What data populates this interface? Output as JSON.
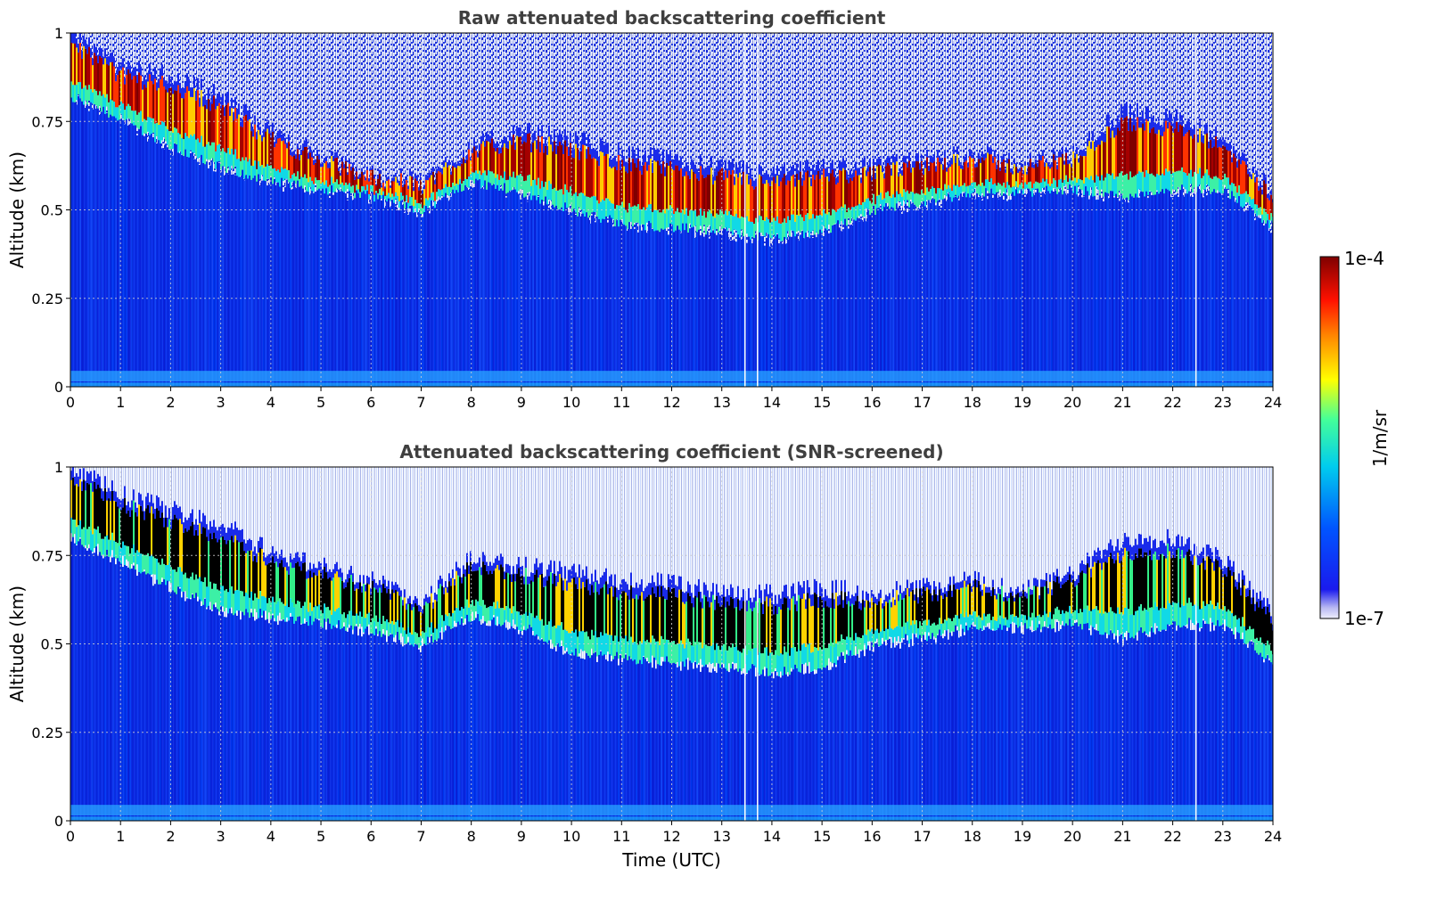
{
  "chart_data": [
    {
      "type": "heatmap",
      "title": "Raw attenuated backscattering coefficient",
      "xlabel": "",
      "ylabel": "Altitude (km)",
      "xlim": [
        0,
        24
      ],
      "ylim": [
        0,
        1
      ],
      "x_ticks": [
        "0",
        "1",
        "2",
        "3",
        "4",
        "5",
        "6",
        "7",
        "8",
        "9",
        "10",
        "11",
        "12",
        "13",
        "14",
        "15",
        "16",
        "17",
        "18",
        "19",
        "20",
        "21",
        "22",
        "23",
        "24"
      ],
      "y_ticks": [
        "0",
        "0.25",
        "0.5",
        "0.75",
        "1"
      ],
      "grid": true,
      "colorscale": "jet",
      "cloud_layer": {
        "time_utc": [
          0,
          1,
          2,
          3,
          4,
          5,
          6,
          7,
          8,
          9,
          10,
          11,
          12,
          13,
          14,
          15,
          16,
          17,
          18,
          19,
          20,
          21,
          22,
          23,
          24
        ],
        "base_km": [
          0.82,
          0.76,
          0.68,
          0.62,
          0.58,
          0.56,
          0.54,
          0.5,
          0.58,
          0.55,
          0.5,
          0.46,
          0.45,
          0.44,
          0.42,
          0.44,
          0.5,
          0.52,
          0.55,
          0.55,
          0.56,
          0.54,
          0.56,
          0.56,
          0.45
        ],
        "top_km": [
          1.0,
          0.9,
          0.88,
          0.82,
          0.72,
          0.65,
          0.6,
          0.58,
          0.68,
          0.72,
          0.7,
          0.66,
          0.64,
          0.62,
          0.6,
          0.62,
          0.62,
          0.64,
          0.66,
          0.63,
          0.66,
          0.78,
          0.76,
          0.7,
          0.55
        ]
      }
    },
    {
      "type": "heatmap",
      "title": "Attenuated backscattering coefficient (SNR-screened)",
      "xlabel": "Time (UTC)",
      "ylabel": "Altitude (km)",
      "xlim": [
        0,
        24
      ],
      "ylim": [
        0,
        1
      ],
      "x_ticks": [
        "0",
        "1",
        "2",
        "3",
        "4",
        "5",
        "6",
        "7",
        "8",
        "9",
        "10",
        "11",
        "12",
        "13",
        "14",
        "15",
        "16",
        "17",
        "18",
        "19",
        "20",
        "21",
        "22",
        "23",
        "24"
      ],
      "y_ticks": [
        "0",
        "0.25",
        "0.5",
        "0.75",
        "1"
      ],
      "grid": true,
      "colorscale": "jet",
      "cloud_layer": {
        "time_utc": [
          0,
          1,
          2,
          3,
          4,
          5,
          6,
          7,
          8,
          9,
          10,
          11,
          12,
          13,
          14,
          15,
          16,
          17,
          18,
          19,
          20,
          21,
          22,
          23,
          24
        ],
        "base_km": [
          0.8,
          0.74,
          0.66,
          0.6,
          0.58,
          0.56,
          0.54,
          0.5,
          0.58,
          0.55,
          0.48,
          0.46,
          0.45,
          0.44,
          0.42,
          0.44,
          0.5,
          0.52,
          0.55,
          0.55,
          0.56,
          0.52,
          0.56,
          0.56,
          0.45
        ],
        "top_km": [
          1.0,
          0.92,
          0.88,
          0.84,
          0.76,
          0.72,
          0.68,
          0.62,
          0.74,
          0.72,
          0.7,
          0.68,
          0.67,
          0.64,
          0.64,
          0.66,
          0.64,
          0.66,
          0.68,
          0.65,
          0.7,
          0.8,
          0.8,
          0.74,
          0.58
        ]
      }
    }
  ],
  "colorbar": {
    "max_label": "1e-4",
    "min_label": "1e-7",
    "unit_label": "1/m/sr",
    "scale": "log"
  },
  "colors": {
    "title": "#3f3f3f",
    "low": "#0a1ee6",
    "cloud_core": "#8b0000",
    "clip": "#000000"
  }
}
